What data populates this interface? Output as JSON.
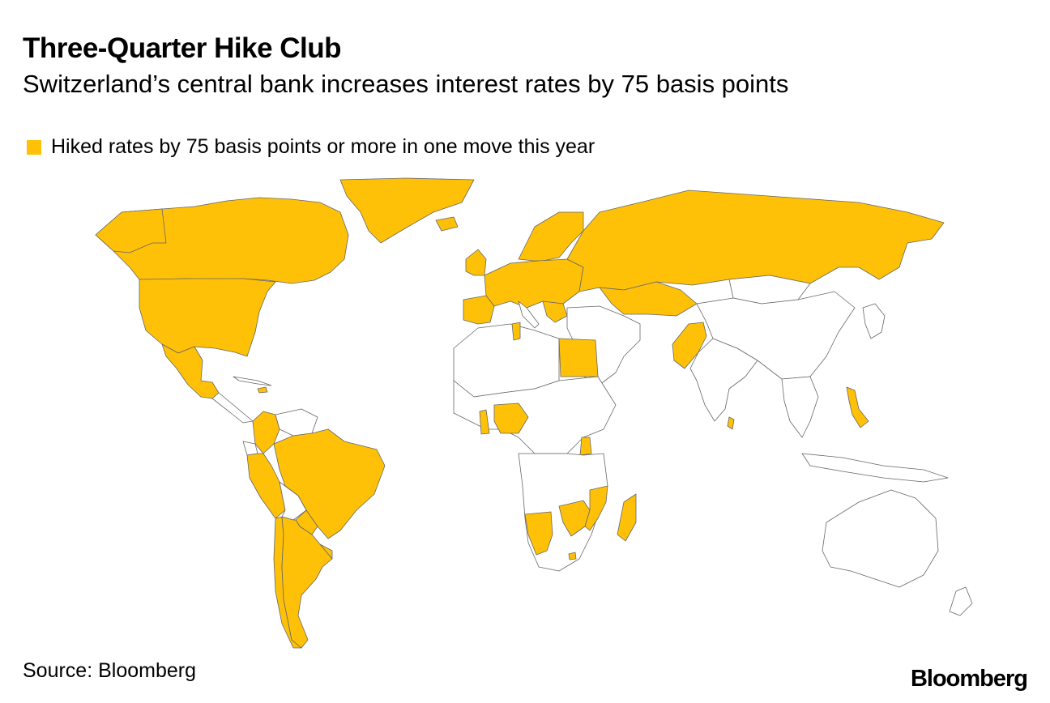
{
  "header": {
    "title": "Three-Quarter Hike Club",
    "subtitle": "Switzerland’s central bank increases interest rates by 75 basis points"
  },
  "legend": {
    "label": "Hiked rates by 75 basis points or more in one move this year",
    "color": "#FFC107"
  },
  "colors": {
    "highlight": "#FFC107",
    "other": "#FFFFFF",
    "border": "#666666"
  },
  "map": {
    "highlighted_regions": [
      "Canada",
      "United States",
      "Mexico",
      "Colombia",
      "Peru",
      "Brazil",
      "Paraguay",
      "Chile",
      "Argentina",
      "Uruguay",
      "Jamaica",
      "Iceland",
      "Norway",
      "Sweden",
      "Finland",
      "Denmark",
      "United Kingdom",
      "Ireland",
      "Portugal",
      "Spain",
      "France",
      "Switzerland",
      "Germany",
      "Poland",
      "Czech Republic",
      "Hungary",
      "Romania",
      "Serbia",
      "Bulgaria",
      "Moldova",
      "Russia",
      "Kazakhstan",
      "Kyrgyzstan",
      "Tunisia",
      "Egypt",
      "Ghana",
      "Nigeria",
      "Uganda",
      "Angola",
      "Mozambique",
      "Zambia",
      "Zimbabwe",
      "Malawi",
      "Madagascar",
      "Lesotho",
      "Pakistan",
      "Sri Lanka",
      "Philippines",
      "Israel",
      "United Arab Emirates",
      "Saudi Arabia",
      "Bahrain",
      "Kuwait",
      "Qatar",
      "Hong Kong",
      "Greenland"
    ]
  },
  "footer": {
    "source": "Source: Bloomberg",
    "brand": "Bloomberg"
  }
}
